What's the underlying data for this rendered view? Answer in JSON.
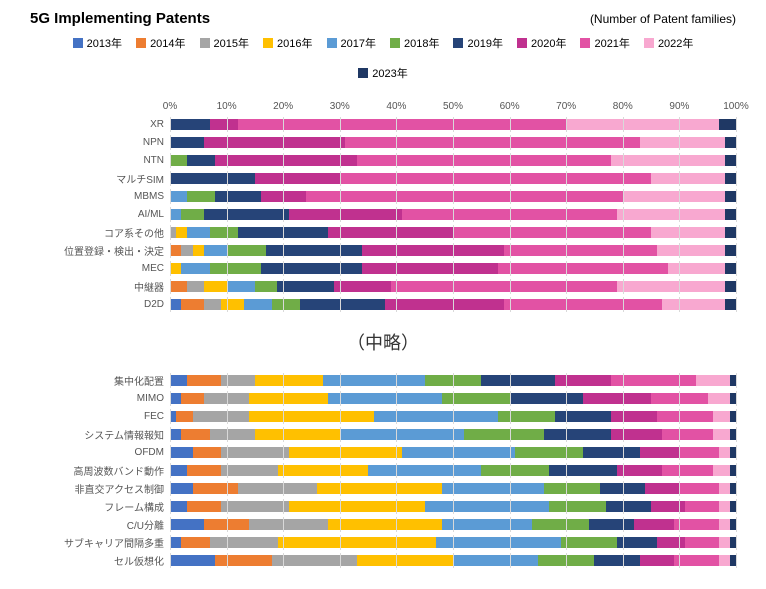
{
  "title": "5G Implementing Patents",
  "subtitle": "(Number of Patent families)",
  "omitted_text": "（中略）",
  "colors": {
    "2013": "#4472c4",
    "2014": "#ed7d31",
    "2015": "#a5a5a5",
    "2016": "#ffc000",
    "2017": "#5b9bd5",
    "2018": "#70ad47",
    "2019": "#264478",
    "2020": "#c0318f",
    "2021": "#e252a4",
    "2022": "#f8a8d0",
    "2023": "#1f3864"
  },
  "legend": [
    {
      "key": "2013",
      "label": "2013年"
    },
    {
      "key": "2014",
      "label": "2014年"
    },
    {
      "key": "2015",
      "label": "2015年"
    },
    {
      "key": "2016",
      "label": "2016年"
    },
    {
      "key": "2017",
      "label": "2017年"
    },
    {
      "key": "2018",
      "label": "2018年"
    },
    {
      "key": "2019",
      "label": "2019年"
    },
    {
      "key": "2020",
      "label": "2020年"
    },
    {
      "key": "2021",
      "label": "2021年"
    },
    {
      "key": "2022",
      "label": "2022年"
    },
    {
      "key": "2023",
      "label": "2023年"
    }
  ],
  "axis_ticks": [
    0,
    10,
    20,
    30,
    40,
    50,
    60,
    70,
    80,
    90,
    100
  ],
  "chart_top": {
    "categories": [
      {
        "label": "XR",
        "values": {
          "2019": 7,
          "2020": 5,
          "2021": 58,
          "2022": 27,
          "2023": 3
        }
      },
      {
        "label": "NPN",
        "values": {
          "2019": 6,
          "2020": 25,
          "2021": 52,
          "2022": 15,
          "2023": 2
        }
      },
      {
        "label": "NTN",
        "values": {
          "2018": 3,
          "2019": 5,
          "2020": 25,
          "2021": 45,
          "2022": 20,
          "2023": 2
        }
      },
      {
        "label": "マルチSIM",
        "values": {
          "2019": 15,
          "2020": 15,
          "2021": 55,
          "2022": 13,
          "2023": 2
        }
      },
      {
        "label": "MBMS",
        "values": {
          "2017": 3,
          "2018": 5,
          "2019": 8,
          "2020": 8,
          "2021": 56,
          "2022": 18,
          "2023": 2
        }
      },
      {
        "label": "AI/ML",
        "values": {
          "2017": 2,
          "2018": 4,
          "2019": 15,
          "2020": 20,
          "2021": 38,
          "2022": 19,
          "2023": 2
        }
      },
      {
        "label": "コア系その他",
        "values": {
          "2015": 1,
          "2016": 2,
          "2017": 4,
          "2018": 5,
          "2019": 16,
          "2020": 22,
          "2021": 35,
          "2022": 13,
          "2023": 2
        }
      },
      {
        "label": "位置登録・検出・決定",
        "values": {
          "2014": 2,
          "2015": 2,
          "2016": 2,
          "2017": 4,
          "2018": 7,
          "2019": 17,
          "2020": 25,
          "2021": 27,
          "2022": 12,
          "2023": 2
        }
      },
      {
        "label": "MEC",
        "values": {
          "2016": 2,
          "2017": 5,
          "2018": 9,
          "2019": 18,
          "2020": 24,
          "2021": 30,
          "2022": 10,
          "2023": 2
        }
      },
      {
        "label": "中継器",
        "values": {
          "2014": 3,
          "2015": 3,
          "2016": 4,
          "2017": 5,
          "2018": 4,
          "2019": 10,
          "2020": 10,
          "2021": 40,
          "2022": 19,
          "2023": 2
        }
      },
      {
        "label": "D2D",
        "values": {
          "2013": 2,
          "2014": 4,
          "2015": 3,
          "2016": 4,
          "2017": 5,
          "2018": 5,
          "2019": 15,
          "2020": 21,
          "2021": 28,
          "2022": 11,
          "2023": 2
        }
      }
    ]
  },
  "chart_bottom": {
    "categories": [
      {
        "label": "集中化配置",
        "values": {
          "2013": 3,
          "2014": 6,
          "2015": 6,
          "2016": 12,
          "2017": 18,
          "2018": 10,
          "2019": 13,
          "2020": 10,
          "2021": 15,
          "2022": 6,
          "2023": 1
        }
      },
      {
        "label": "MIMO",
        "values": {
          "2013": 2,
          "2014": 4,
          "2015": 8,
          "2016": 14,
          "2017": 20,
          "2018": 12,
          "2019": 13,
          "2020": 12,
          "2021": 10,
          "2022": 4,
          "2023": 1
        }
      },
      {
        "label": "FEC",
        "values": {
          "2013": 1,
          "2014": 3,
          "2015": 10,
          "2016": 22,
          "2017": 22,
          "2018": 10,
          "2019": 10,
          "2020": 8,
          "2021": 10,
          "2022": 3,
          "2023": 1
        }
      },
      {
        "label": "システム情報報知",
        "values": {
          "2013": 2,
          "2014": 5,
          "2015": 8,
          "2016": 15,
          "2017": 22,
          "2018": 14,
          "2019": 12,
          "2020": 9,
          "2021": 9,
          "2022": 3,
          "2023": 1
        }
      },
      {
        "label": "OFDM",
        "values": {
          "2013": 4,
          "2014": 5,
          "2015": 12,
          "2016": 20,
          "2017": 20,
          "2018": 12,
          "2019": 10,
          "2020": 7,
          "2021": 7,
          "2022": 2,
          "2023": 1
        }
      },
      {
        "label": "高周波数バンド動作",
        "values": {
          "2013": 3,
          "2014": 6,
          "2015": 10,
          "2016": 16,
          "2017": 20,
          "2018": 12,
          "2019": 12,
          "2020": 8,
          "2021": 9,
          "2022": 3,
          "2023": 1
        }
      },
      {
        "label": "非直交アクセス制御",
        "values": {
          "2013": 4,
          "2014": 8,
          "2015": 14,
          "2016": 22,
          "2017": 18,
          "2018": 10,
          "2019": 8,
          "2020": 6,
          "2021": 7,
          "2022": 2,
          "2023": 1
        }
      },
      {
        "label": "フレーム構成",
        "values": {
          "2013": 3,
          "2014": 6,
          "2015": 12,
          "2016": 24,
          "2017": 22,
          "2018": 10,
          "2019": 8,
          "2020": 6,
          "2021": 6,
          "2022": 2,
          "2023": 1
        }
      },
      {
        "label": "C/U分離",
        "values": {
          "2013": 6,
          "2014": 8,
          "2015": 14,
          "2016": 20,
          "2017": 16,
          "2018": 10,
          "2019": 8,
          "2020": 7,
          "2021": 8,
          "2022": 2,
          "2023": 1
        }
      },
      {
        "label": "サブキャリア間隔多重",
        "values": {
          "2013": 2,
          "2014": 5,
          "2015": 12,
          "2016": 28,
          "2017": 22,
          "2018": 10,
          "2019": 7,
          "2020": 5,
          "2021": 6,
          "2022": 2,
          "2023": 1
        }
      },
      {
        "label": "セル仮想化",
        "values": {
          "2013": 8,
          "2014": 10,
          "2015": 15,
          "2016": 17,
          "2017": 15,
          "2018": 10,
          "2019": 8,
          "2020": 6,
          "2021": 8,
          "2022": 2,
          "2023": 1
        }
      }
    ]
  }
}
